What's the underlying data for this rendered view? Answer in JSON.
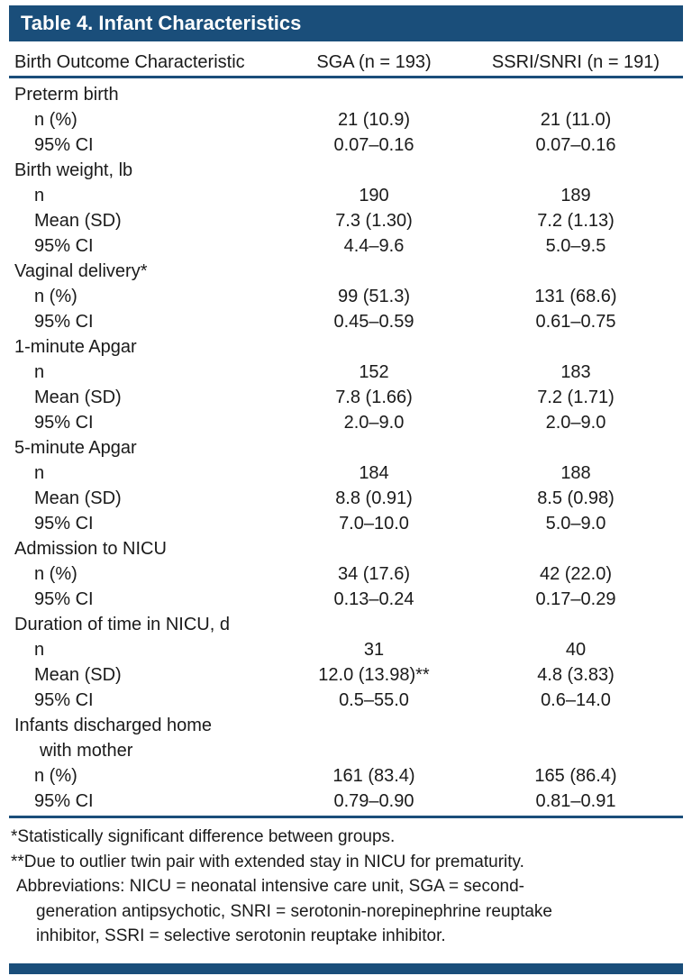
{
  "title": "Table 4. Infant Characteristics",
  "columns": {
    "characteristic": "Birth Outcome Characteristic",
    "sga": "SGA (n = 193)",
    "ssri": "SSRI/SNRI (n = 191)"
  },
  "sections": [
    {
      "label": "Preterm birth",
      "rows": [
        {
          "label": "n (%)",
          "sga": "21 (10.9)",
          "ssri": "21 (11.0)"
        },
        {
          "label": "95% CI",
          "sga": "0.07–0.16",
          "ssri": "0.07–0.16"
        }
      ]
    },
    {
      "label": "Birth weight, lb",
      "rows": [
        {
          "label": "n",
          "sga": "190",
          "ssri": "189"
        },
        {
          "label": "Mean (SD)",
          "sga": "7.3 (1.30)",
          "ssri": "7.2 (1.13)"
        },
        {
          "label": "95% CI",
          "sga": "4.4–9.6",
          "ssri": "5.0–9.5"
        }
      ]
    },
    {
      "label": "Vaginal delivery*",
      "rows": [
        {
          "label": "n (%)",
          "sga": "99 (51.3)",
          "ssri": "131 (68.6)"
        },
        {
          "label": "95% CI",
          "sga": "0.45–0.59",
          "ssri": "0.61–0.75"
        }
      ]
    },
    {
      "label": "1-minute Apgar",
      "rows": [
        {
          "label": "n",
          "sga": "152",
          "ssri": "183"
        },
        {
          "label": "Mean (SD)",
          "sga": "7.8 (1.66)",
          "ssri": "7.2 (1.71)"
        },
        {
          "label": "95% CI",
          "sga": "2.0–9.0",
          "ssri": "2.0–9.0"
        }
      ]
    },
    {
      "label": "5-minute Apgar",
      "rows": [
        {
          "label": "n",
          "sga": "184",
          "ssri": "188"
        },
        {
          "label": "Mean (SD)",
          "sga": "8.8 (0.91)",
          "ssri": "8.5 (0.98)"
        },
        {
          "label": "95% CI",
          "sga": "7.0–10.0",
          "ssri": "5.0–9.0"
        }
      ]
    },
    {
      "label": "Admission to NICU",
      "rows": [
        {
          "label": "n (%)",
          "sga": "34 (17.6)",
          "ssri": "42 (22.0)"
        },
        {
          "label": "95% CI",
          "sga": "0.13–0.24",
          "ssri": "0.17–0.29"
        }
      ]
    },
    {
      "label": "Duration of time in NICU, d",
      "rows": [
        {
          "label": "n",
          "sga": "31",
          "ssri": "40"
        },
        {
          "label": "Mean (SD)",
          "sga": "12.0 (13.98)**",
          "ssri": "4.8 (3.83)"
        },
        {
          "label": "95% CI",
          "sga": "0.5–55.0",
          "ssri": "0.6–14.0"
        }
      ]
    },
    {
      "label": "Infants discharged home",
      "label2": "with mother",
      "rows": [
        {
          "label": "n (%)",
          "sga": "161 (83.4)",
          "ssri": "165 (86.4)"
        },
        {
          "label": "95% CI",
          "sga": "0.79–0.90",
          "ssri": "0.81–0.91"
        }
      ]
    }
  ],
  "footnotes": {
    "significance": "*Statistically significant difference between groups.",
    "outlier": "**Due to outlier twin pair with extended stay in NICU for prematurity.",
    "abbr_line1": "Abbreviations: NICU = neonatal intensive care unit, SGA = second-",
    "abbr_line2": "generation antipsychotic, SNRI = serotonin-norepinephrine reuptake",
    "abbr_line3": "inhibitor, SSRI = selective serotonin reuptake inhibitor."
  },
  "colors": {
    "header_bg": "#1a4e7a",
    "rule": "#1a4e7a",
    "header_text": "#ffffff",
    "body_text": "#1a1a1a"
  }
}
